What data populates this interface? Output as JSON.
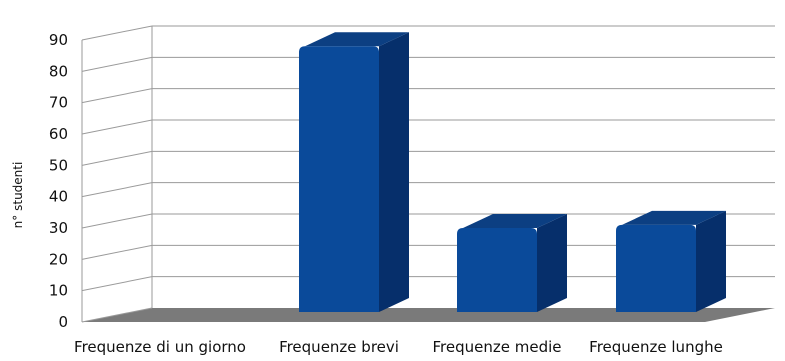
{
  "chart_data": {
    "type": "bar",
    "title": "",
    "xlabel": "",
    "ylabel": "n° studenti",
    "categories": [
      "Frequenze di un giorno",
      "Frequenze brevi",
      "Frequenze medie",
      "Frequenze lunghe"
    ],
    "values": [
      0,
      88,
      30,
      31
    ],
    "ylim": [
      0,
      90
    ],
    "yticks": [
      0,
      10,
      20,
      30,
      40,
      50,
      60,
      70,
      80,
      90
    ],
    "grid": true,
    "legend": "none",
    "bar_style": "3d",
    "colors": {
      "bar_front": "#0a4a9a",
      "bar_side": "#062f6b",
      "bar_top": "#0c3f82",
      "floor": "#7a7a7a",
      "grid": "#9a9a9a"
    }
  }
}
